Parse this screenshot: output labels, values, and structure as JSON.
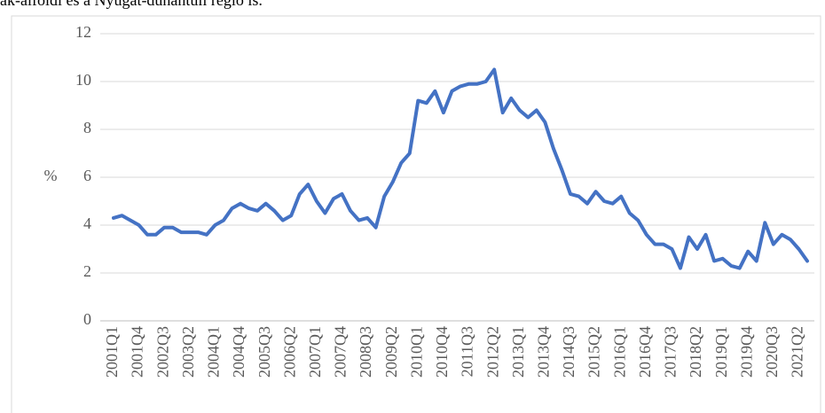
{
  "caption": "ak-alföldi és a Nyugat-dunántúli régió is.",
  "chart_data": {
    "type": "line",
    "ylabel": "%",
    "categories": [
      "2001Q1",
      null,
      null,
      "2001Q4",
      null,
      null,
      "2002Q3",
      null,
      null,
      "2003Q2",
      null,
      null,
      "2004Q1",
      null,
      null,
      "2004Q4",
      null,
      null,
      "2005Q3",
      null,
      null,
      "2006Q2",
      null,
      null,
      "2007Q1",
      null,
      null,
      "2007Q4",
      null,
      null,
      "2008Q3",
      null,
      null,
      "2009Q2",
      null,
      null,
      "2010Q1",
      null,
      null,
      "2010Q4",
      null,
      null,
      "2011Q3",
      null,
      null,
      "2012Q2",
      null,
      null,
      "2013Q1",
      null,
      null,
      "2013Q4",
      null,
      null,
      "2014Q3",
      null,
      null,
      "2015Q2",
      null,
      null,
      "2016Q1",
      null,
      null,
      "2016Q4",
      null,
      null,
      "2017Q3",
      null,
      null,
      "2018Q2",
      null,
      null,
      "2019Q1",
      null,
      null,
      "2019Q4",
      null,
      null,
      "2020Q3",
      null,
      null,
      "2021Q2",
      null
    ],
    "values": [
      4.3,
      4.4,
      4.2,
      4.0,
      3.6,
      3.6,
      3.9,
      3.9,
      3.7,
      3.7,
      3.7,
      3.6,
      4.0,
      4.2,
      4.7,
      4.9,
      4.7,
      4.6,
      4.9,
      4.6,
      4.2,
      4.4,
      5.3,
      5.7,
      5.0,
      4.5,
      5.1,
      5.3,
      4.6,
      4.2,
      4.3,
      3.9,
      5.2,
      5.8,
      6.6,
      7.0,
      9.2,
      9.1,
      9.6,
      8.7,
      9.6,
      9.8,
      9.9,
      9.9,
      10.0,
      10.5,
      8.7,
      9.3,
      8.8,
      8.5,
      8.8,
      8.3,
      7.2,
      6.3,
      5.3,
      5.2,
      4.9,
      5.4,
      5.0,
      4.9,
      5.2,
      4.5,
      4.2,
      3.6,
      3.2,
      3.2,
      3.0,
      2.2,
      3.5,
      3.0,
      3.6,
      2.5,
      2.6,
      2.3,
      2.2,
      2.9,
      2.5,
      4.1,
      3.2,
      3.6,
      3.4,
      3.0,
      2.5
    ],
    "color": "#4472c4",
    "ylim": [
      0,
      12
    ],
    "yticks": [
      0,
      2,
      4,
      6,
      8,
      10,
      12
    ],
    "grid": true
  }
}
